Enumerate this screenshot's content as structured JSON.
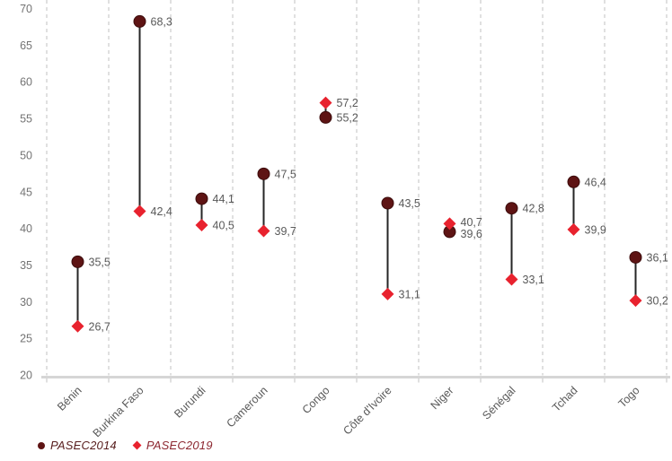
{
  "chart_data": {
    "type": "scatter",
    "subtype": "dumbbell-range-plot",
    "title": "",
    "categories": [
      "Bénin",
      "Burkina Faso",
      "Burundi",
      "Cameroun",
      "Congo",
      "Côte d'Ivoire",
      "Niger",
      "Sénégal",
      "Tchad",
      "Togo"
    ],
    "series": [
      {
        "name": "PASEC2014",
        "marker": "circle",
        "color": "#5e1414",
        "values": [
          35.5,
          68.3,
          44.1,
          47.5,
          55.2,
          43.5,
          39.6,
          42.8,
          46.4,
          36.1
        ]
      },
      {
        "name": "PASEC2019",
        "marker": "diamond",
        "color": "#e8222e",
        "values": [
          26.7,
          42.4,
          40.5,
          39.7,
          57.2,
          31.1,
          40.7,
          33.1,
          39.9,
          30.2
        ]
      }
    ],
    "ylim": [
      20,
      70
    ],
    "ytick_step": 5,
    "ytick_labels": [
      "20",
      "25",
      "30",
      "35",
      "40",
      "45",
      "50",
      "55",
      "60",
      "65",
      "70"
    ],
    "decimal_separator": ",",
    "grid": "vertical-dashed",
    "legend_position": "bottom-left",
    "colors": {
      "connector": "#262626",
      "grid": "#c2c2c2",
      "axis": "#d6d6d6",
      "tick_text": "#737373",
      "data_label": "#595959",
      "category_label": "#595959",
      "legend_text_2014": "#571d1d",
      "legend_text_2019": "#8c2730"
    }
  }
}
